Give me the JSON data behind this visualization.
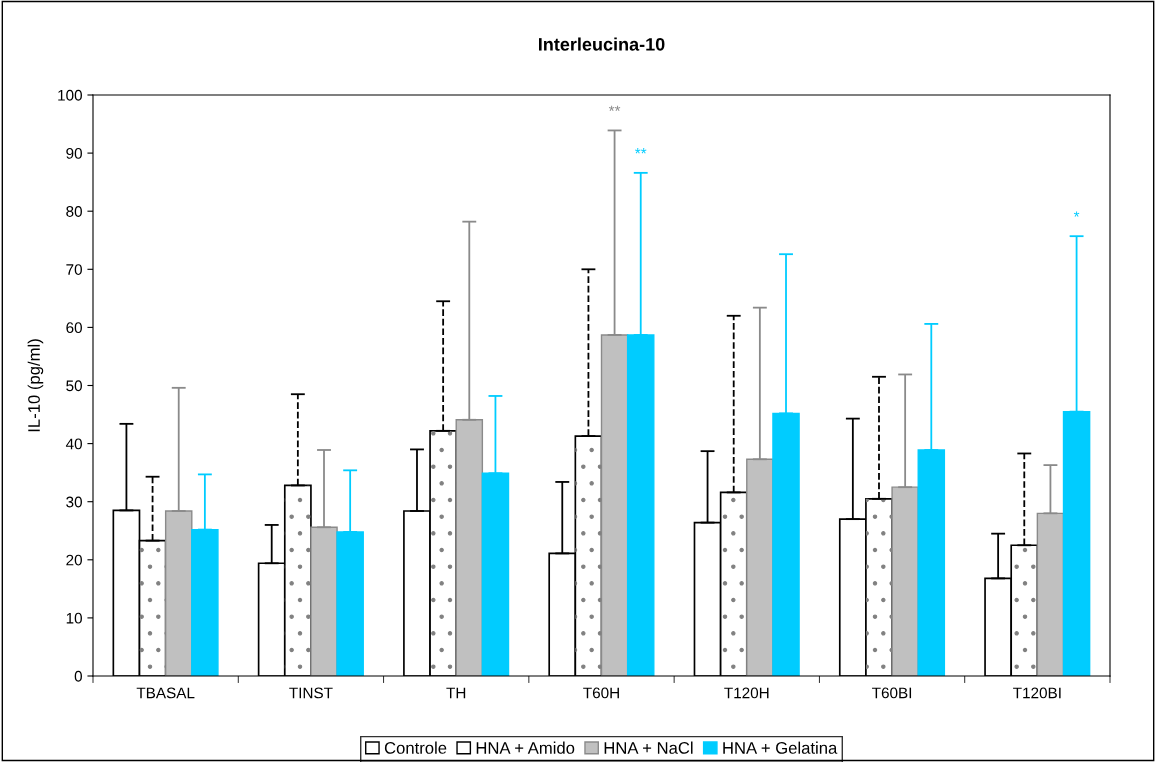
{
  "chart_data": {
    "type": "bar",
    "title": "Interleucina-10",
    "ylabel": "IL-10 (pg/ml)",
    "categories": [
      "TBASAL",
      "TINST",
      "TH",
      "T60H",
      "T120H",
      "T60BI",
      "T120BI"
    ],
    "series": [
      {
        "name": "Controle",
        "color": "#ffffff",
        "values": [
          28.5,
          19.4,
          28.4,
          21.1,
          26.4,
          27.0,
          16.8
        ],
        "errors": [
          [
            28.5,
            43.4
          ],
          [
            19.4,
            26.0
          ],
          [
            28.4,
            39.0
          ],
          [
            21.1,
            33.4
          ],
          [
            26.4,
            38.7
          ],
          [
            27.0,
            44.3
          ],
          [
            16.8,
            24.5
          ]
        ]
      },
      {
        "name": "HNA + Amido",
        "color": "#ffffff",
        "values": [
          23.3,
          32.8,
          42.2,
          41.3,
          31.6,
          30.5,
          22.5
        ],
        "errors": [
          [
            23.3,
            34.3
          ],
          [
            32.8,
            48.5
          ],
          [
            42.2,
            64.5
          ],
          [
            41.3,
            70.0
          ],
          [
            31.6,
            62.0
          ],
          [
            30.5,
            51.5
          ],
          [
            22.5,
            38.3
          ]
        ]
      },
      {
        "name": "HNA + NaCl",
        "color": "#c0c0c0",
        "values": [
          28.4,
          25.6,
          44.1,
          58.7,
          37.3,
          32.5,
          28.0
        ],
        "errors": [
          [
            28.4,
            49.6
          ],
          [
            25.6,
            38.9
          ],
          [
            44.1,
            78.2
          ],
          [
            58.7,
            93.9
          ],
          [
            37.3,
            63.4
          ],
          [
            32.5,
            51.9
          ],
          [
            28.0,
            36.3
          ]
        ]
      },
      {
        "name": "HNA + Gelatina",
        "color": "#00ccff",
        "values": [
          25.2,
          24.8,
          34.9,
          58.7,
          45.2,
          38.9,
          45.5
        ],
        "errors": [
          [
            25.2,
            34.7
          ],
          [
            24.8,
            35.4
          ],
          [
            34.9,
            48.2
          ],
          [
            58.7,
            86.6
          ],
          [
            45.2,
            72.6
          ],
          [
            38.9,
            60.6
          ],
          [
            45.5,
            75.7
          ]
        ]
      }
    ],
    "annotations": [
      "**",
      "**",
      "*"
    ],
    "ylim": [
      0,
      100
    ],
    "yticks": [
      0,
      10,
      20,
      30,
      40,
      50,
      60,
      70,
      80,
      90,
      100
    ],
    "grid": false,
    "legend": "bottom"
  }
}
